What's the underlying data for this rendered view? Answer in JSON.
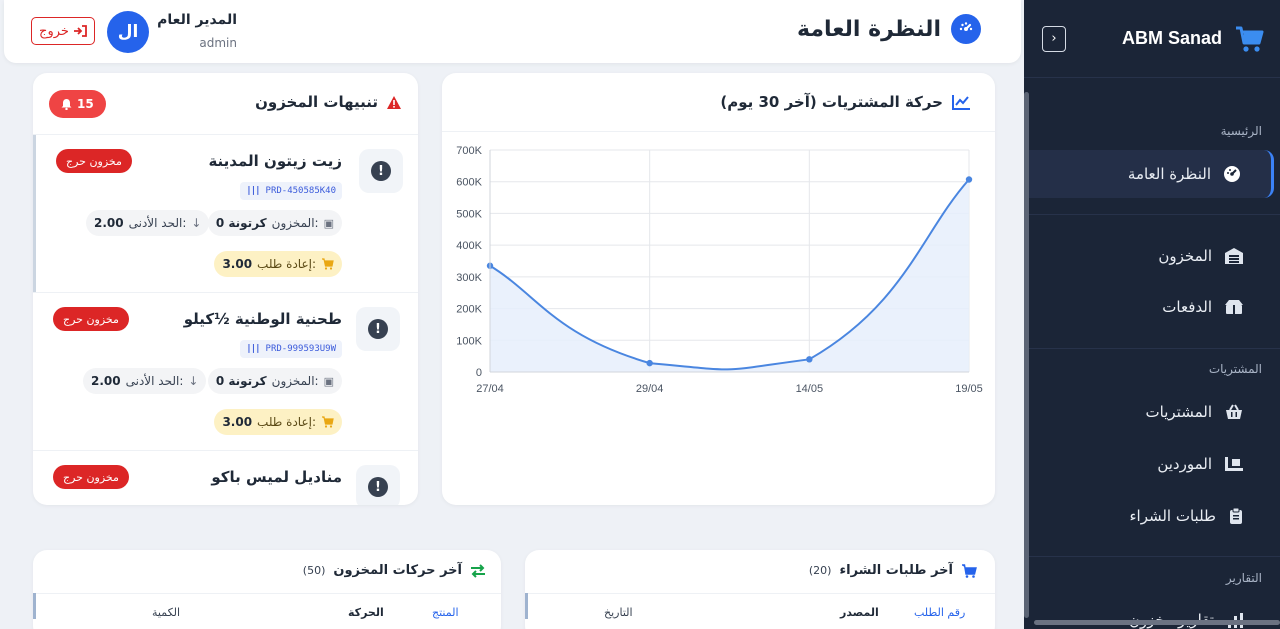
{
  "sidebar": {
    "brand": "ABM Sanad",
    "collapse_icon": "chevron-right-icon",
    "sections": {
      "main": "الرئيسية",
      "purchases": "المشتريات",
      "reports": "التقارير"
    },
    "items": {
      "overview": "النظرة العامة",
      "inventory": "المخزون",
      "payments": "الدفعات",
      "purchases": "المشتريات",
      "suppliers": "الموردين",
      "purchase_orders": "طلبات الشراء",
      "reports_partial": "تقارير مخزون"
    }
  },
  "header": {
    "title": "النظرة العامة",
    "user_name": "المدير العام",
    "user_role": "admin",
    "avatar_initials": "ال",
    "logout_label": "خروج"
  },
  "chart_card": {
    "title": "حركة المشتريات (آخر 30 يوم)"
  },
  "chart_data": {
    "type": "area",
    "x": [
      "27/04",
      "29/04",
      "14/05",
      "19/05"
    ],
    "values": [
      335000,
      28000,
      40000,
      607000
    ],
    "ylim": [
      0,
      700000
    ],
    "yticks": [
      "0",
      "100K",
      "200K",
      "300K",
      "400K",
      "500K",
      "600K",
      "700K"
    ],
    "ytick_values": [
      0,
      100000,
      200000,
      300000,
      400000,
      500000,
      600000,
      700000
    ],
    "grid": true,
    "colors": {
      "line": "#4a86e0",
      "fill": "#e6eefb"
    }
  },
  "alerts": {
    "title": "تنبيهات المخزون",
    "count": "15",
    "items": [
      {
        "name": "زيت زيتون المدينة",
        "sku": "PRD-450585K40",
        "status": "مخزون حرج",
        "stock_label": "المخزون:",
        "stock_value": "0 كرتونة",
        "min_label": "الحد الأدنى:",
        "min_value": "2.00",
        "reorder_label": "إعادة طلب:",
        "reorder_value": "3.00"
      },
      {
        "name": "طحنية الوطنية ½كيلو",
        "sku": "PRD-999593U9W",
        "status": "مخزون حرج",
        "stock_label": "المخزون:",
        "stock_value": "0 كرتونة",
        "min_label": "الحد الأدنى:",
        "min_value": "2.00",
        "reorder_label": "إعادة طلب:",
        "reorder_value": "3.00"
      },
      {
        "name": "مناديل لميس باكو",
        "status": "مخزون حرج"
      }
    ]
  },
  "purchase_orders": {
    "title": "آخر طلبات الشراء",
    "count": "(20)",
    "columns": {
      "order_no": "رقم الطلب",
      "source": "المصدر",
      "date": "التاريخ"
    }
  },
  "movements": {
    "title": "آخر حركات المخزون",
    "count": "(50)",
    "columns": {
      "product": "المنتج",
      "movement": "الحركة",
      "quantity": "الكمية"
    }
  }
}
